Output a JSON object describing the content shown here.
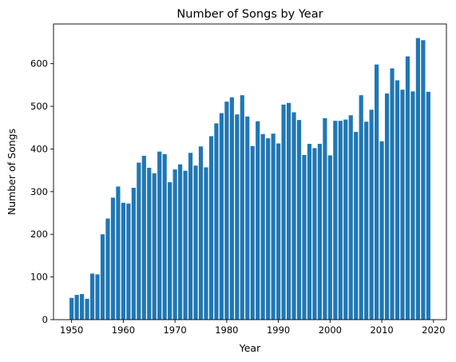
{
  "chart_data": {
    "type": "bar",
    "title": "Number of Songs by Year",
    "xlabel": "Year",
    "ylabel": "Number of Songs",
    "color": "#1f77b4",
    "xlim": [
      1946.5,
      2022.5
    ],
    "ylim": [
      0,
      693
    ],
    "xticks": [
      1950,
      1960,
      1970,
      1980,
      1990,
      2000,
      2010,
      2020
    ],
    "yticks": [
      0,
      100,
      200,
      300,
      400,
      500,
      600
    ],
    "grid": false,
    "categories": [
      1950,
      1951,
      1952,
      1953,
      1954,
      1955,
      1956,
      1957,
      1958,
      1959,
      1960,
      1961,
      1962,
      1963,
      1964,
      1965,
      1966,
      1967,
      1968,
      1969,
      1970,
      1971,
      1972,
      1973,
      1974,
      1975,
      1976,
      1977,
      1978,
      1979,
      1980,
      1981,
      1982,
      1983,
      1984,
      1985,
      1986,
      1987,
      1988,
      1989,
      1990,
      1991,
      1992,
      1993,
      1994,
      1995,
      1996,
      1997,
      1998,
      1999,
      2000,
      2001,
      2002,
      2003,
      2004,
      2005,
      2006,
      2007,
      2008,
      2009,
      2010,
      2011,
      2012,
      2013,
      2014,
      2015,
      2016,
      2017,
      2018,
      2019
    ],
    "values": [
      51,
      58,
      60,
      49,
      108,
      106,
      200,
      237,
      286,
      312,
      274,
      272,
      309,
      368,
      384,
      356,
      343,
      394,
      388,
      322,
      352,
      364,
      349,
      391,
      361,
      406,
      357,
      430,
      460,
      484,
      511,
      521,
      481,
      526,
      476,
      407,
      465,
      435,
      425,
      436,
      413,
      504,
      508,
      486,
      468,
      386,
      412,
      402,
      412,
      472,
      385,
      466,
      466,
      469,
      479,
      440,
      526,
      464,
      492,
      598,
      418,
      530,
      589,
      561,
      539,
      617,
      535,
      660,
      655,
      534
    ]
  }
}
